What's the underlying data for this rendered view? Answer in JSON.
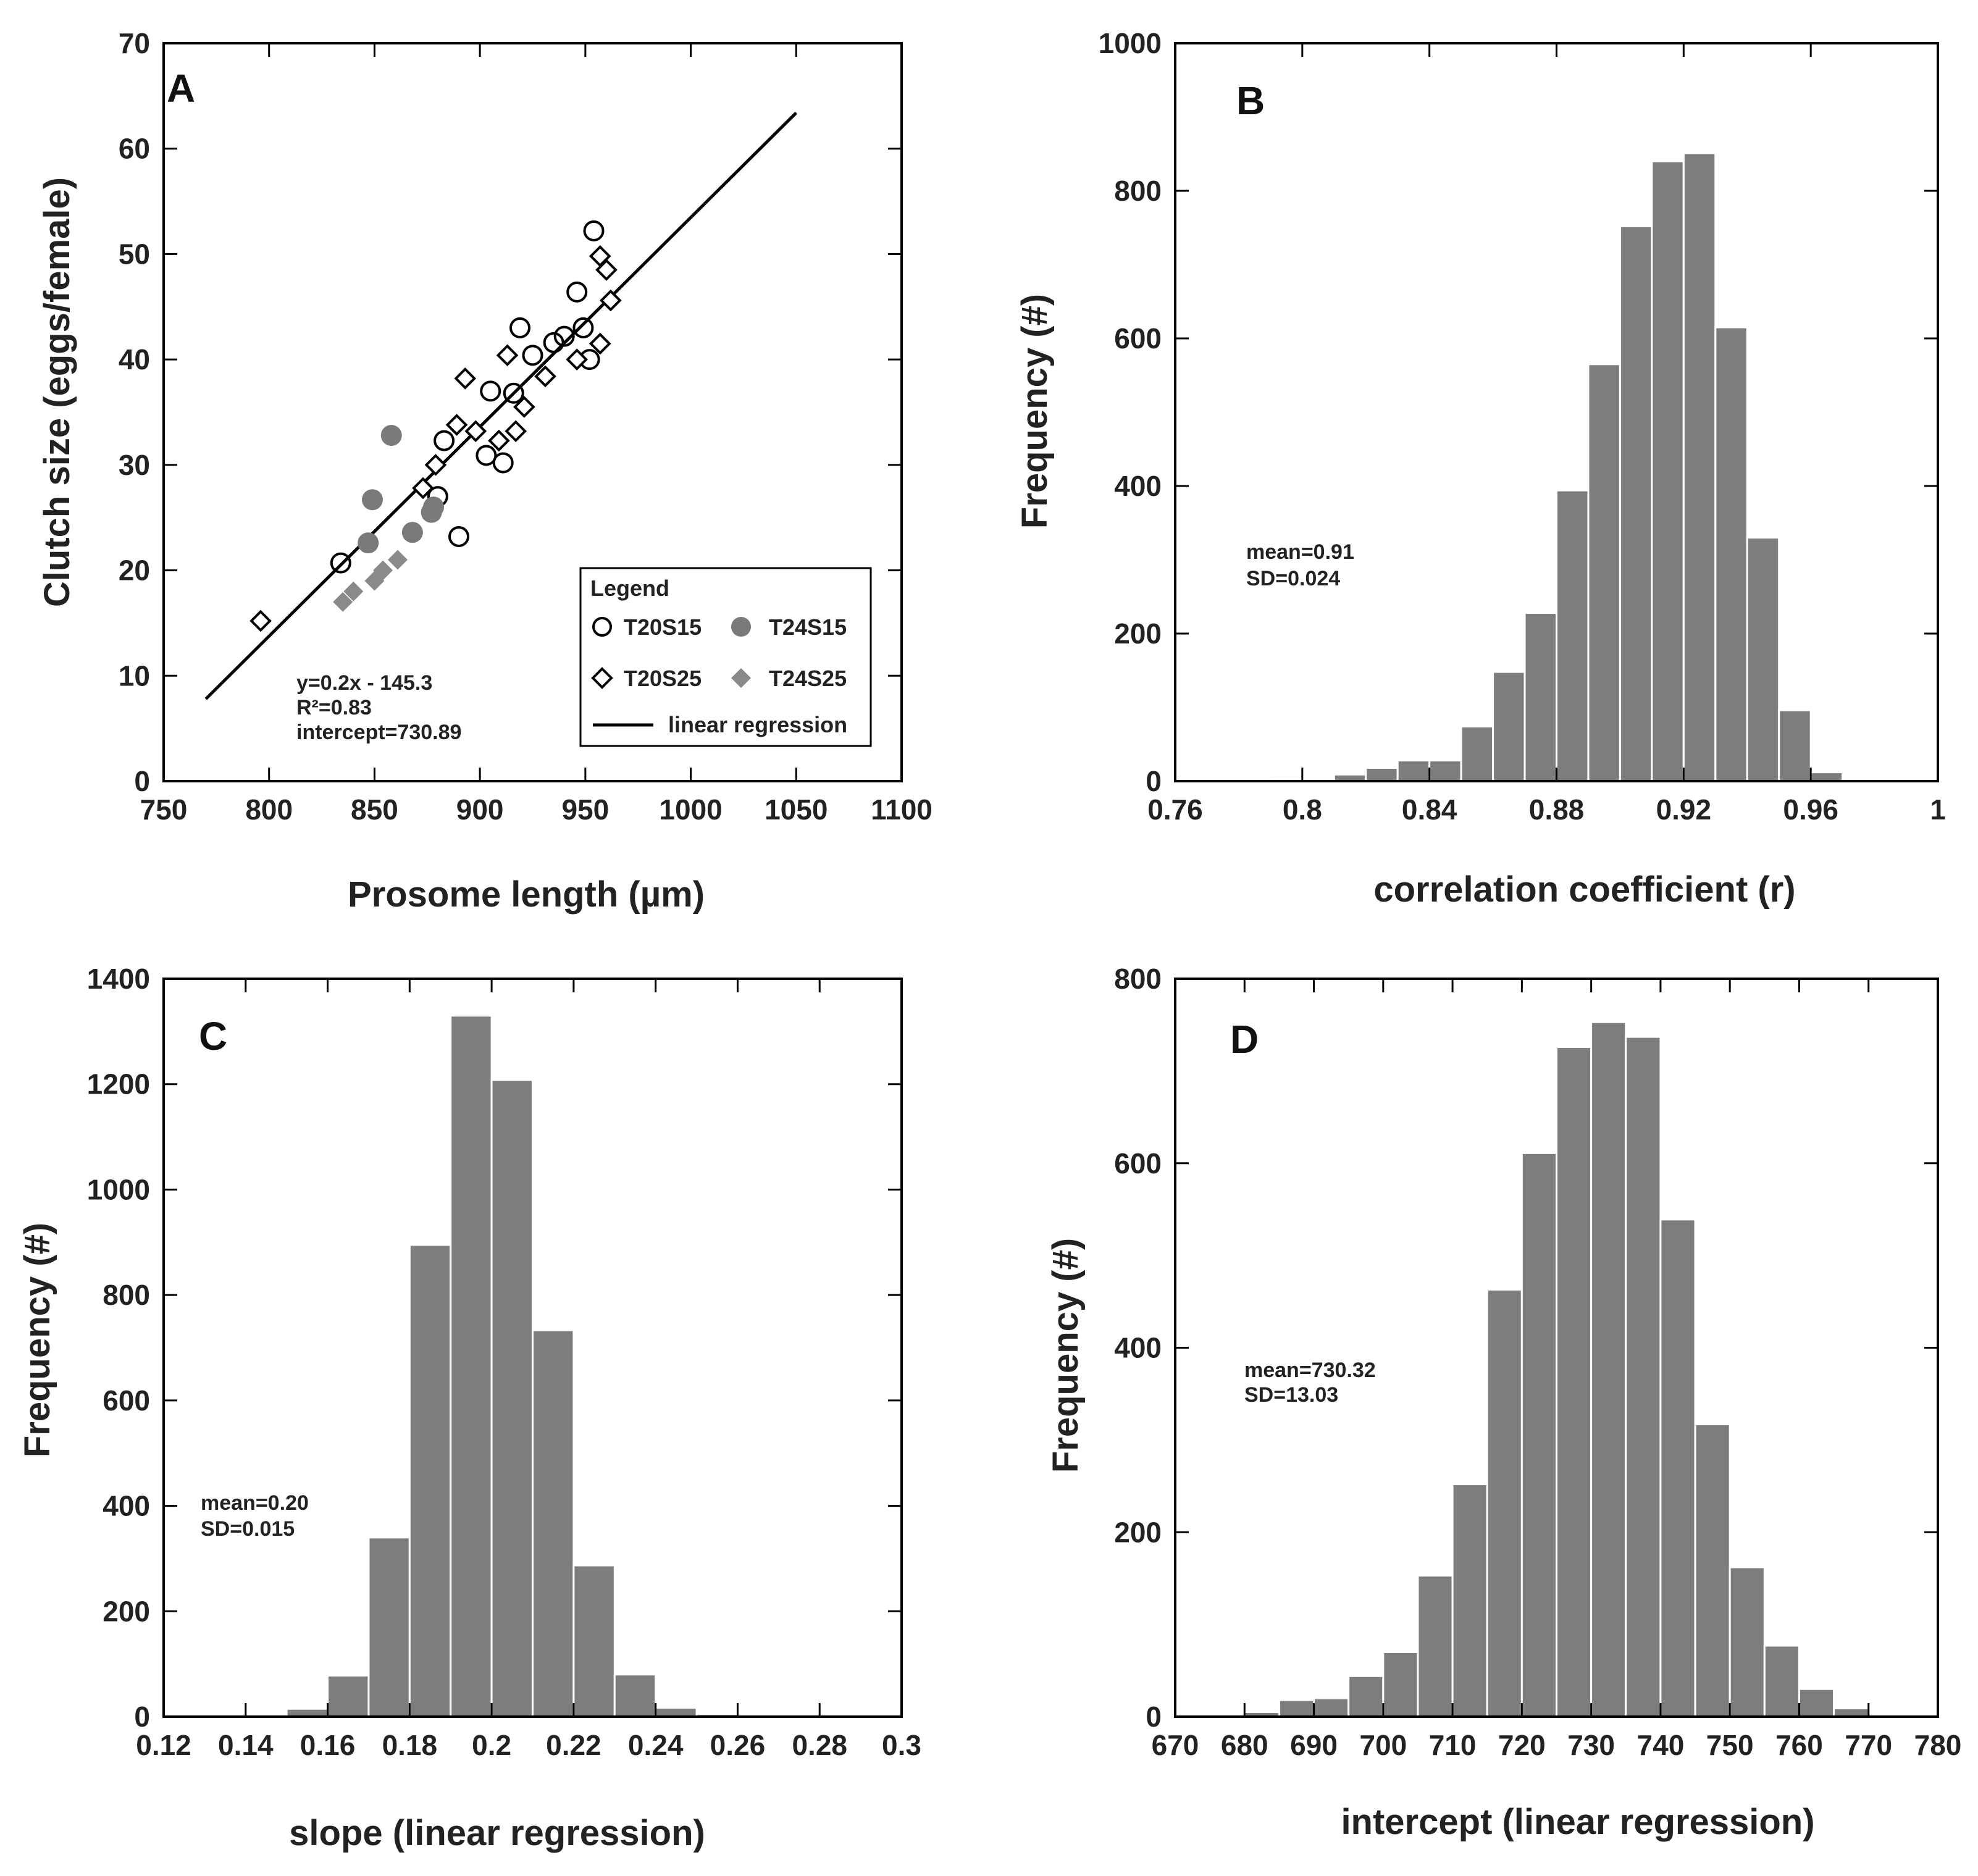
{
  "chart_data": [
    {
      "panel": "A",
      "type": "scatter",
      "xlabel": "Prosome length (µm)",
      "ylabel": "Clutch size (eggs/female)",
      "xlim": [
        750,
        1100
      ],
      "ylim": [
        0,
        70
      ],
      "xticks": [
        750,
        800,
        850,
        900,
        950,
        1000,
        1050,
        1100
      ],
      "yticks": [
        0,
        10,
        20,
        30,
        40,
        50,
        60,
        70
      ],
      "series": [
        {
          "name": "T20S15",
          "marker": "circle-open",
          "color": "#000000",
          "points": [
            [
              834,
              20.7
            ],
            [
              880,
              27.0
            ],
            [
              883,
              32.3
            ],
            [
              890,
              23.2
            ],
            [
              903,
              30.9
            ],
            [
              905,
              37.0
            ],
            [
              911,
              30.2
            ],
            [
              916,
              36.8
            ],
            [
              919,
              43.0
            ],
            [
              925,
              40.4
            ],
            [
              935,
              41.6
            ],
            [
              940,
              42.2
            ],
            [
              946,
              46.4
            ],
            [
              949,
              43.0
            ],
            [
              952,
              40.0
            ],
            [
              954,
              52.2
            ]
          ]
        },
        {
          "name": "T20S25",
          "marker": "diamond-open",
          "color": "#000000",
          "points": [
            [
              796,
              15.2
            ],
            [
              873,
              27.8
            ],
            [
              879,
              30.0
            ],
            [
              889,
              33.8
            ],
            [
              893,
              38.2
            ],
            [
              898,
              33.2
            ],
            [
              909,
              32.3
            ],
            [
              913,
              40.4
            ],
            [
              917,
              33.2
            ],
            [
              921,
              35.5
            ],
            [
              931,
              38.4
            ],
            [
              946,
              40.0
            ],
            [
              957,
              41.5
            ],
            [
              957,
              49.8
            ],
            [
              960,
              48.5
            ],
            [
              962,
              45.6
            ]
          ]
        },
        {
          "name": "T24S15",
          "marker": "circle-filled",
          "color": "#7a7a7a",
          "points": [
            [
              847,
              22.6
            ],
            [
              849,
              26.7
            ],
            [
              858,
              32.8
            ],
            [
              868,
              23.6
            ],
            [
              877,
              25.5
            ],
            [
              878,
              26.0
            ]
          ]
        },
        {
          "name": "T24S25",
          "marker": "diamond-filled",
          "color": "#8a8a8a",
          "points": [
            [
              835,
              17.0
            ],
            [
              840,
              18.0
            ],
            [
              850,
              19.0
            ],
            [
              854,
              20.0
            ],
            [
              861,
              21.0
            ]
          ]
        }
      ],
      "regression": {
        "name": "linear regression",
        "x": [
          770,
          1050
        ],
        "y": [
          7.8,
          63.4
        ]
      },
      "legend": {
        "title": "Legend",
        "entries": [
          "T20S15",
          "T24S15",
          "T20S25",
          "T24S25",
          "linear regression"
        ],
        "placement": "bottom-right"
      },
      "annotations": [
        "y=0.2x - 145.3",
        "R²=0.83",
        "intercept=730.89"
      ]
    },
    {
      "panel": "B",
      "type": "bar",
      "xlabel": "correlation coefficient (r)",
      "ylabel": "Frequency (#)",
      "xlim": [
        0.76,
        1.0
      ],
      "ylim": [
        0,
        1000
      ],
      "xticks": [
        0.76,
        0.8,
        0.84,
        0.88,
        0.92,
        0.96,
        1
      ],
      "xtick_labels": [
        "0.76",
        "0.8",
        "0.84",
        "0.88",
        "0.92",
        "0.96",
        "1"
      ],
      "yticks": [
        0,
        200,
        400,
        600,
        800,
        1000
      ],
      "bin_width": 0.01,
      "bin_starts": [
        0.79,
        0.8,
        0.81,
        0.82,
        0.83,
        0.84,
        0.85,
        0.86,
        0.87,
        0.88,
        0.89,
        0.9,
        0.91,
        0.92,
        0.93,
        0.94,
        0.95,
        0.96
      ],
      "values": [
        3,
        2,
        9,
        18,
        28,
        28,
        74,
        148,
        228,
        394,
        565,
        752,
        840,
        851,
        615,
        330,
        96,
        12
      ],
      "annotations": [
        "mean=0.91",
        "SD=0.024"
      ]
    },
    {
      "panel": "C",
      "type": "bar",
      "xlabel": "slope (linear regression)",
      "ylabel": "Frequency (#)",
      "xlim": [
        0.12,
        0.3
      ],
      "ylim": [
        0,
        1400
      ],
      "xticks": [
        0.12,
        0.14,
        0.16,
        0.18,
        0.2,
        0.22,
        0.24,
        0.26,
        0.28,
        0.3
      ],
      "xtick_labels": [
        "0.12",
        "0.14",
        "0.16",
        "0.18",
        "0.2",
        "0.22",
        "0.24",
        "0.26",
        "0.28",
        "0.3"
      ],
      "yticks": [
        0,
        200,
        400,
        600,
        800,
        1000,
        1200,
        1400
      ],
      "bin_width": 0.01,
      "bin_starts": [
        0.15,
        0.16,
        0.17,
        0.18,
        0.19,
        0.2,
        0.21,
        0.22,
        0.23,
        0.24,
        0.25,
        0.26
      ],
      "values": [
        15,
        78,
        340,
        895,
        1330,
        1208,
        733,
        287,
        80,
        17,
        5,
        1
      ],
      "annotations": [
        "mean=0.20",
        "SD=0.015"
      ]
    },
    {
      "panel": "D",
      "type": "bar",
      "xlabel": "intercept (linear regression)",
      "ylabel": "Frequency (#)",
      "xlim": [
        670,
        780
      ],
      "ylim": [
        0,
        800
      ],
      "xticks": [
        670,
        680,
        690,
        700,
        710,
        720,
        730,
        740,
        750,
        760,
        770,
        780
      ],
      "xtick_labels": [
        "670",
        "680",
        "690",
        "700",
        "710",
        "720",
        "730",
        "740",
        "750",
        "760",
        "770",
        "780"
      ],
      "yticks": [
        0,
        200,
        400,
        600,
        800
      ],
      "bin_width": 5,
      "bin_starts": [
        675,
        680,
        685,
        690,
        695,
        700,
        705,
        710,
        715,
        720,
        725,
        730,
        735,
        740,
        745,
        750,
        755,
        760,
        765,
        770,
        775
      ],
      "values": [
        1,
        5,
        18,
        20,
        44,
        70,
        153,
        252,
        463,
        611,
        726,
        753,
        737,
        539,
        317,
        162,
        77,
        30,
        9,
        2,
        1
      ],
      "annotations": [
        "mean=730.32",
        "SD=13.03"
      ]
    }
  ]
}
